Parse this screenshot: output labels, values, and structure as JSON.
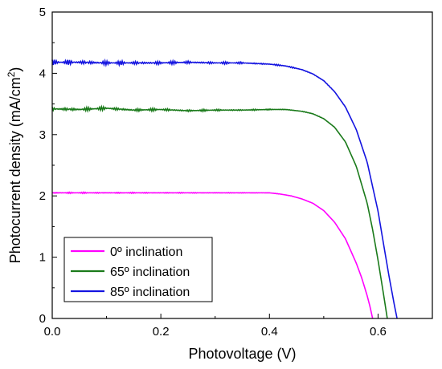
{
  "chart_data": {
    "type": "line",
    "xlabel": "Photovoltage (V)",
    "ylabel_main": "Photocurrent density (mA/cm",
    "ylabel_sup": "2",
    "ylabel_close": ")",
    "xlim": [
      0.0,
      0.7
    ],
    "ylim": [
      0,
      5
    ],
    "x_ticks": [
      0.0,
      0.2,
      0.4,
      0.6
    ],
    "x_tick_labels": [
      "0.0",
      "0.2",
      "0.4",
      "0.6"
    ],
    "y_ticks": [
      0,
      1,
      2,
      3,
      4,
      5
    ],
    "y_tick_labels": [
      "0",
      "1",
      "2",
      "3",
      "4",
      "5"
    ],
    "grid": false,
    "legend_position": "bottom-left",
    "series": [
      {
        "name": "0º inclination",
        "color": "#ff00ff",
        "noise": 0.012,
        "x": [
          0.0,
          0.05,
          0.1,
          0.15,
          0.2,
          0.25,
          0.3,
          0.35,
          0.4,
          0.42,
          0.44,
          0.46,
          0.48,
          0.5,
          0.52,
          0.54,
          0.56,
          0.57,
          0.58,
          0.585,
          0.59
        ],
        "y": [
          2.05,
          2.05,
          2.05,
          2.05,
          2.05,
          2.05,
          2.05,
          2.05,
          2.05,
          2.03,
          2.0,
          1.95,
          1.88,
          1.76,
          1.57,
          1.3,
          0.9,
          0.66,
          0.37,
          0.2,
          0.0
        ]
      },
      {
        "name": "65º inclination",
        "color": "#1a7a1a",
        "noise": 0.035,
        "x": [
          0.0,
          0.05,
          0.1,
          0.15,
          0.2,
          0.25,
          0.3,
          0.35,
          0.4,
          0.43,
          0.46,
          0.48,
          0.5,
          0.52,
          0.54,
          0.56,
          0.58,
          0.59,
          0.6,
          0.61,
          0.617
        ],
        "y": [
          3.42,
          3.41,
          3.43,
          3.4,
          3.41,
          3.39,
          3.4,
          3.4,
          3.41,
          3.41,
          3.38,
          3.34,
          3.26,
          3.12,
          2.88,
          2.48,
          1.88,
          1.45,
          0.95,
          0.4,
          0.0
        ]
      },
      {
        "name": "85º inclination",
        "color": "#1414e0",
        "noise": 0.045,
        "x": [
          0.0,
          0.05,
          0.1,
          0.15,
          0.2,
          0.25,
          0.3,
          0.35,
          0.4,
          0.43,
          0.46,
          0.48,
          0.5,
          0.52,
          0.54,
          0.56,
          0.58,
          0.6,
          0.61,
          0.62,
          0.63,
          0.635
        ],
        "y": [
          4.18,
          4.18,
          4.17,
          4.17,
          4.17,
          4.18,
          4.17,
          4.17,
          4.15,
          4.12,
          4.06,
          3.99,
          3.88,
          3.7,
          3.45,
          3.08,
          2.55,
          1.75,
          1.22,
          0.7,
          0.22,
          0.0
        ]
      }
    ]
  }
}
